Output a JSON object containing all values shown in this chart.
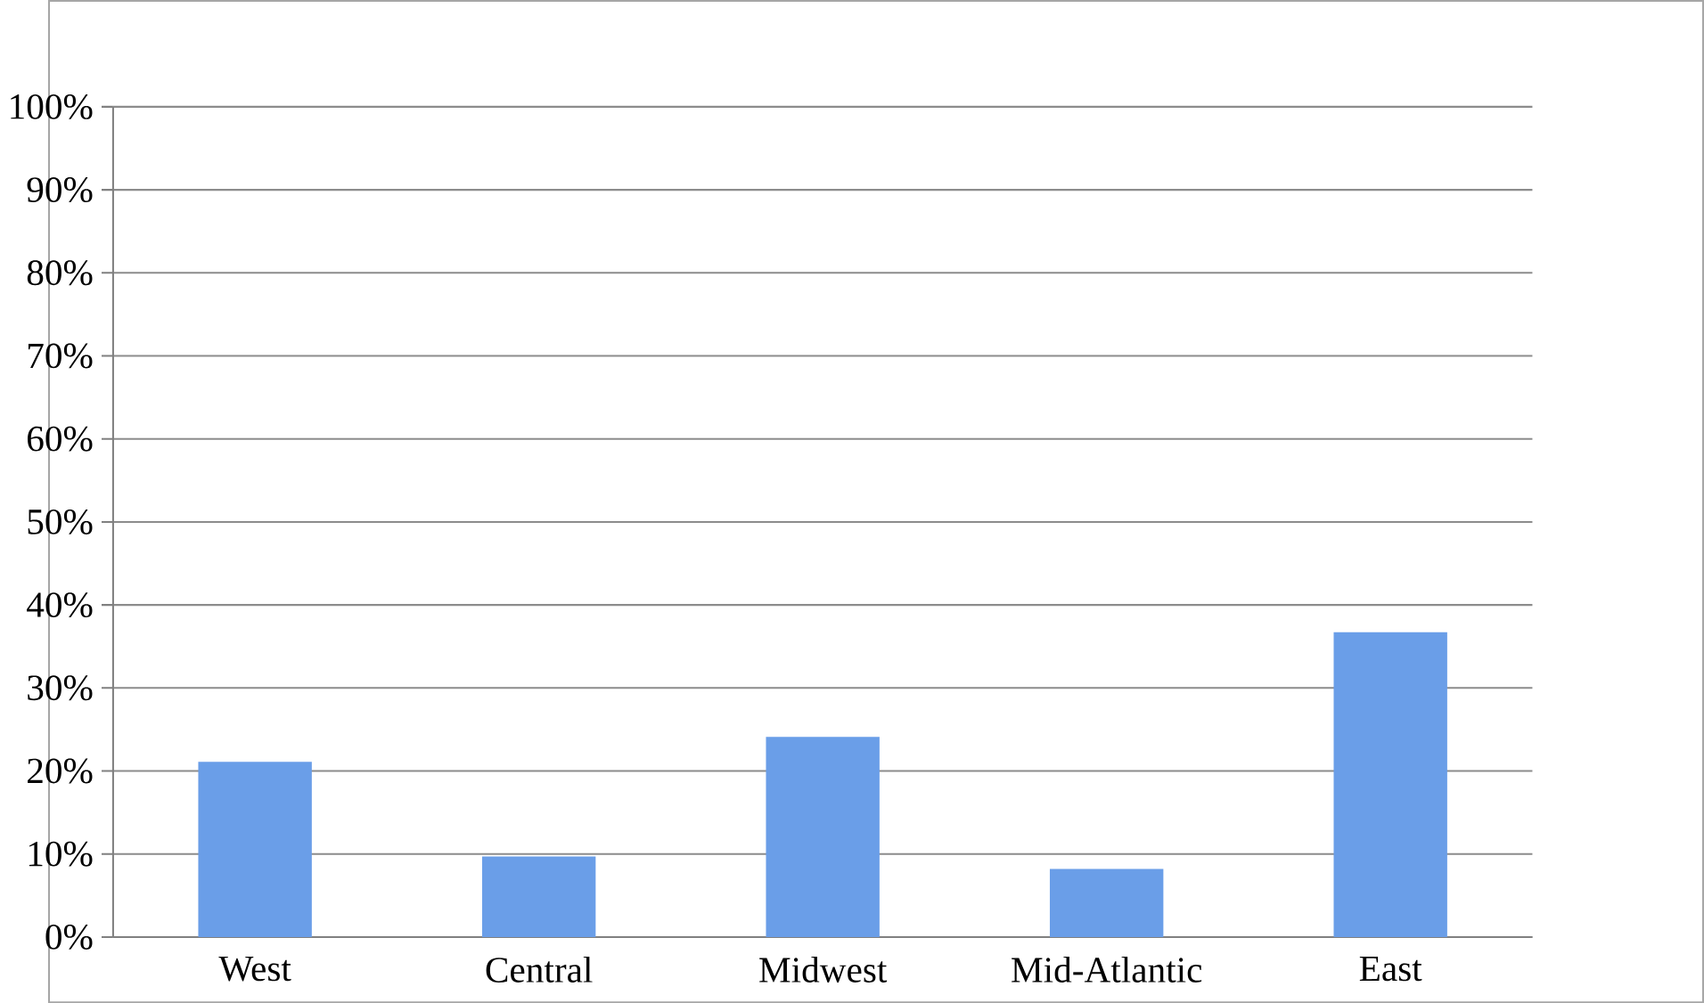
{
  "chart_data": {
    "type": "bar",
    "categories": [
      "West",
      "Central",
      "Midwest",
      "Mid-Atlantic",
      "East"
    ],
    "values": [
      21.1,
      9.7,
      24.1,
      8.2,
      36.7
    ],
    "color": "#6a9ee8",
    "ylim": [
      0,
      100
    ],
    "yticks": [
      {
        "value": 0,
        "label": "0%"
      },
      {
        "value": 10,
        "label": "10%"
      },
      {
        "value": 20,
        "label": "20%"
      },
      {
        "value": 30,
        "label": "30%"
      },
      {
        "value": 40,
        "label": "40%"
      },
      {
        "value": 50,
        "label": "50%"
      },
      {
        "value": 60,
        "label": "60%"
      },
      {
        "value": 70,
        "label": "70%"
      },
      {
        "value": 80,
        "label": "80%"
      },
      {
        "value": 90,
        "label": "90%"
      },
      {
        "value": 100,
        "label": "100%"
      }
    ],
    "grid": "y"
  }
}
